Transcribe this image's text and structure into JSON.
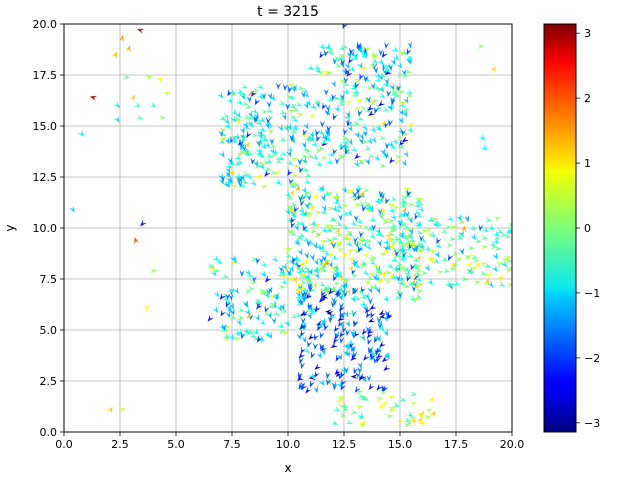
{
  "chart_data": {
    "type": "quiver",
    "title": "t = 3215",
    "xlabel": "x",
    "ylabel": "y",
    "xlim": [
      0,
      20
    ],
    "ylim": [
      0,
      20
    ],
    "xticks": [
      "0.0",
      "2.5",
      "5.0",
      "7.5",
      "10.0",
      "12.5",
      "15.0",
      "17.5",
      "20.0"
    ],
    "yticks": [
      "0.0",
      "2.5",
      "5.0",
      "7.5",
      "10.0",
      "12.5",
      "15.0",
      "17.5",
      "20.0"
    ],
    "grid": true,
    "colorbar": {
      "colormap": "jet",
      "min": -3.14159,
      "max": 3.14159,
      "ticks": [
        "3",
        "2",
        "1",
        "0",
        "−1",
        "−2",
        "−3"
      ]
    },
    "clusters": [
      {
        "x_range": [
          7,
          11
        ],
        "y_range": [
          12,
          17
        ],
        "count": 220,
        "angle_mean": -0.6,
        "angle_spread": 1.5
      },
      {
        "x_range": [
          11,
          15.5
        ],
        "y_range": [
          13,
          19
        ],
        "count": 260,
        "angle_mean": -0.9,
        "angle_spread": 1.5
      },
      {
        "x_range": [
          10,
          16
        ],
        "y_range": [
          6.5,
          12
        ],
        "count": 420,
        "angle_mean": -0.4,
        "angle_spread": 1.6
      },
      {
        "x_range": [
          15,
          20
        ],
        "y_range": [
          7,
          10.5
        ],
        "count": 130,
        "angle_mean": -0.3,
        "angle_spread": 1.3
      },
      {
        "x_range": [
          6.5,
          11
        ],
        "y_range": [
          4.5,
          8.5
        ],
        "count": 130,
        "angle_mean": -0.7,
        "angle_spread": 1.4
      },
      {
        "x_range": [
          10.5,
          14.5
        ],
        "y_range": [
          2,
          7
        ],
        "count": 190,
        "angle_mean": -1.7,
        "angle_spread": 1.2
      },
      {
        "x_range": [
          12,
          16.5
        ],
        "y_range": [
          0.3,
          2
        ],
        "count": 45,
        "angle_mean": 0.2,
        "angle_spread": 1.1
      }
    ],
    "sparse_vectors": [
      {
        "x": 1.3,
        "y": 16.4,
        "angle": 2.9
      },
      {
        "x": 3.4,
        "y": 19.7,
        "angle": 2.8
      },
      {
        "x": 2.3,
        "y": 18.5,
        "angle": 1.2
      },
      {
        "x": 2.6,
        "y": 19.3,
        "angle": 1.4
      },
      {
        "x": 2.9,
        "y": 18.8,
        "angle": 1.3
      },
      {
        "x": 2.8,
        "y": 17.4,
        "angle": -0.2
      },
      {
        "x": 3.8,
        "y": 17.4,
        "angle": 0.3
      },
      {
        "x": 4.3,
        "y": 17.3,
        "angle": 0.8
      },
      {
        "x": 4.6,
        "y": 16.6,
        "angle": 0.4
      },
      {
        "x": 3.3,
        "y": 16.0,
        "angle": -0.4
      },
      {
        "x": 3.1,
        "y": 16.4,
        "angle": 1.1
      },
      {
        "x": 4.0,
        "y": 16.0,
        "angle": -0.5
      },
      {
        "x": 2.4,
        "y": 16.0,
        "angle": -0.9
      },
      {
        "x": 2.4,
        "y": 15.3,
        "angle": -1.0
      },
      {
        "x": 3.4,
        "y": 15.4,
        "angle": -0.3
      },
      {
        "x": 4.4,
        "y": 15.4,
        "angle": 0.1
      },
      {
        "x": 0.8,
        "y": 14.6,
        "angle": -0.9
      },
      {
        "x": 0.4,
        "y": 10.9,
        "angle": -1.0
      },
      {
        "x": 3.5,
        "y": 10.2,
        "angle": -2.3
      },
      {
        "x": 3.2,
        "y": 9.4,
        "angle": 1.9
      },
      {
        "x": 4.0,
        "y": 7.9,
        "angle": 0.1
      },
      {
        "x": 3.7,
        "y": 6.1,
        "angle": 0.8
      },
      {
        "x": 2.1,
        "y": 1.1,
        "angle": 1.1
      },
      {
        "x": 2.6,
        "y": 1.1,
        "angle": 0.4
      },
      {
        "x": 18.6,
        "y": 18.9,
        "angle": 0.1
      },
      {
        "x": 19.2,
        "y": 17.8,
        "angle": 1.0
      },
      {
        "x": 18.7,
        "y": 14.4,
        "angle": -0.8
      },
      {
        "x": 18.8,
        "y": 13.9,
        "angle": -0.7
      },
      {
        "x": 16.0,
        "y": 0.9,
        "angle": 1.0
      },
      {
        "x": 16.5,
        "y": 0.9,
        "angle": 1.1
      },
      {
        "x": 12.5,
        "y": 19.9,
        "angle": -2.1
      },
      {
        "x": 15.0,
        "y": 0.5,
        "angle": 0.6
      }
    ]
  }
}
